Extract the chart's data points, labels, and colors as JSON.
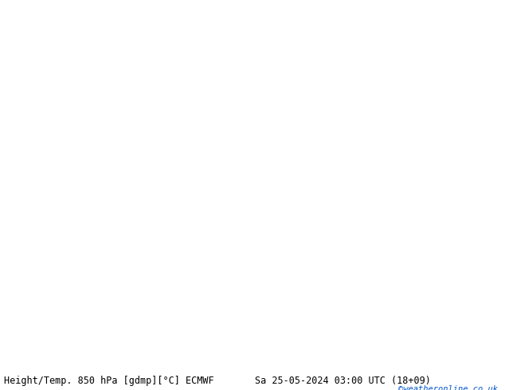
{
  "title_left": "Height/Temp. 850 hPa [gdmp][°C] ECMWF",
  "title_right": "Sa 25-05-2024 03:00 UTC (18+09)",
  "copyright": "©weatheronline.co.uk",
  "bg_color_land": "#c8f0a0",
  "bg_color_sea": "#d0d0d0",
  "map_border_color": "#9090aa",
  "title_fontsize": 8.5,
  "copyright_color": "#0055cc",
  "orange": "#ffaa00",
  "red": "#dd2200",
  "magenta": "#dd00aa",
  "black": "#000000",
  "green_lime": "#88cc00",
  "fig_w": 6.34,
  "fig_h": 4.9,
  "dpi": 100,
  "extent": [
    -15,
    65,
    20,
    58
  ]
}
